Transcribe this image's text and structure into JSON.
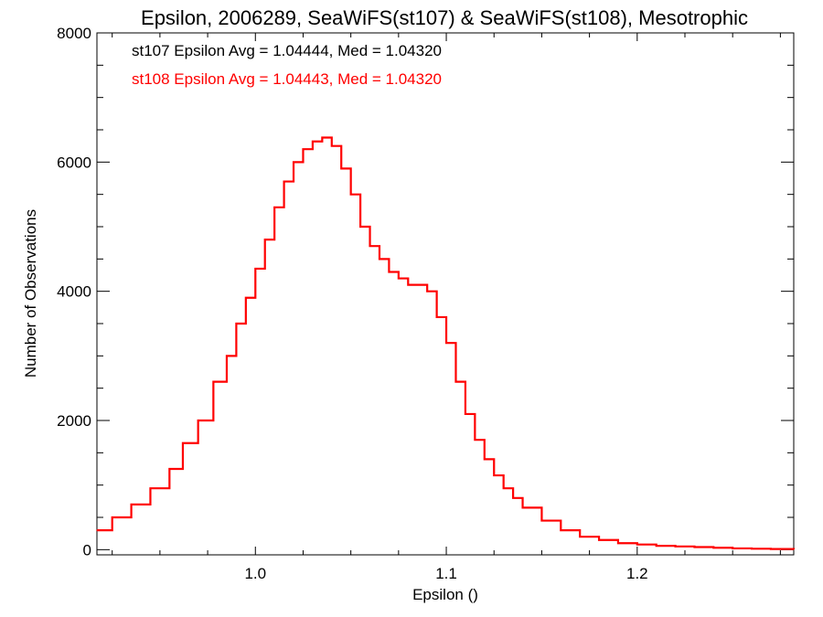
{
  "chart_data": {
    "type": "line",
    "step": true,
    "title": "Epsilon, 2006289, SeaWiFS(st107) & SeaWiFS(st108), Mesotrophic",
    "xlabel": "Epsilon ()",
    "ylabel": "Number of Observations",
    "xlim": [
      0.917,
      1.282
    ],
    "ylim": [
      -80,
      8000
    ],
    "xticks": [
      1.0,
      1.1,
      1.2
    ],
    "xtick_labels": [
      "1.0",
      "1.1",
      "1.2"
    ],
    "yticks": [
      0,
      2000,
      4000,
      6000,
      8000
    ],
    "ytick_labels": [
      "0",
      "2000",
      "4000",
      "6000",
      "8000"
    ],
    "annotations": [
      {
        "text": "st107 Epsilon Avg = 1.04444, Med = 1.04320",
        "color": "#000000"
      },
      {
        "text": "st108 Epsilon Avg = 1.04443, Med = 1.04320",
        "color": "#ff0000"
      }
    ],
    "series": [
      {
        "color": "#ff0000",
        "x": [
          0.917,
          0.925,
          0.935,
          0.945,
          0.955,
          0.962,
          0.97,
          0.978,
          0.985,
          0.99,
          0.995,
          1.0,
          1.005,
          1.01,
          1.015,
          1.02,
          1.025,
          1.03,
          1.035,
          1.04,
          1.045,
          1.05,
          1.055,
          1.06,
          1.065,
          1.07,
          1.075,
          1.08,
          1.085,
          1.09,
          1.095,
          1.1,
          1.105,
          1.11,
          1.115,
          1.12,
          1.125,
          1.13,
          1.135,
          1.14,
          1.15,
          1.16,
          1.17,
          1.18,
          1.19,
          1.2,
          1.21,
          1.22,
          1.23,
          1.24,
          1.25,
          1.26,
          1.27,
          1.282
        ],
        "values": [
          300,
          500,
          700,
          950,
          1250,
          1650,
          2000,
          2600,
          3000,
          3500,
          3900,
          4350,
          4800,
          5300,
          5700,
          6000,
          6200,
          6320,
          6380,
          6250,
          5900,
          5500,
          5000,
          4700,
          4500,
          4300,
          4200,
          4100,
          4100,
          4000,
          3600,
          3200,
          2600,
          2100,
          1700,
          1400,
          1150,
          950,
          800,
          650,
          450,
          300,
          200,
          150,
          100,
          80,
          60,
          50,
          40,
          30,
          20,
          15,
          10,
          5
        ]
      }
    ]
  }
}
